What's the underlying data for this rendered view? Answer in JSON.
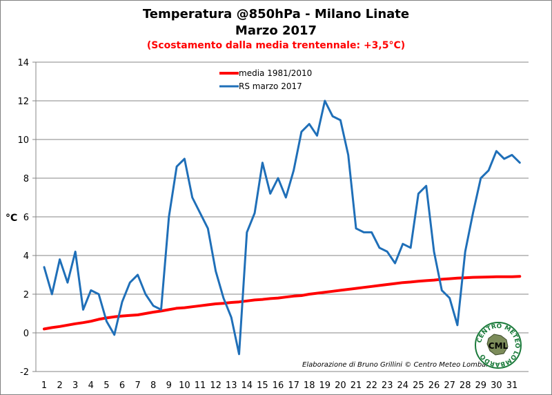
{
  "header": {
    "title_line1": "Temperatura @850hPa - Milano Linate",
    "title_line2": "Marzo 2017",
    "subtitle": "(Scostamento dalla media trentennale: +3,5°C)"
  },
  "colors": {
    "media": "#ff0000",
    "rs": "#1f6fb8",
    "subtitle": "#ff0000",
    "axis": "#868686",
    "grid": "#868686"
  },
  "credit": "Elaborazione di Bruno Grillini © Centro Meteo Lombardo",
  "logo": {
    "ring_text": "CENTRO METEO LOMBARDO",
    "center_text": "CML"
  },
  "chart_data": {
    "type": "line",
    "x": [
      1,
      1.5,
      2,
      2.5,
      3,
      3.5,
      4,
      4.5,
      5,
      5.5,
      6,
      6.5,
      7,
      7.5,
      8,
      8.5,
      9,
      9.5,
      10,
      10.5,
      11,
      11.5,
      12,
      12.5,
      13,
      13.5,
      14,
      14.5,
      15,
      15.5,
      16,
      16.5,
      17,
      17.5,
      18,
      18.5,
      19,
      19.5,
      20,
      20.5,
      21,
      21.5,
      22,
      22.5,
      23,
      23.5,
      24,
      24.5,
      25,
      25.5,
      26,
      26.5,
      27,
      27.5,
      28,
      28.5,
      29,
      29.5,
      30,
      30.5,
      31,
      31.5
    ],
    "series": [
      {
        "name": "media 1981/2010",
        "values": [
          0.2,
          0.27,
          0.33,
          0.4,
          0.47,
          0.53,
          0.6,
          0.7,
          0.77,
          0.83,
          0.87,
          0.9,
          0.93,
          1.0,
          1.07,
          1.13,
          1.2,
          1.27,
          1.3,
          1.35,
          1.4,
          1.45,
          1.5,
          1.53,
          1.57,
          1.6,
          1.65,
          1.7,
          1.73,
          1.77,
          1.8,
          1.85,
          1.9,
          1.93,
          2.0,
          2.05,
          2.1,
          2.15,
          2.2,
          2.25,
          2.3,
          2.35,
          2.4,
          2.45,
          2.5,
          2.55,
          2.6,
          2.63,
          2.67,
          2.7,
          2.73,
          2.77,
          2.8,
          2.83,
          2.85,
          2.87,
          2.88,
          2.89,
          2.9,
          2.9,
          2.9,
          2.92
        ]
      },
      {
        "name": "RS marzo 2017",
        "values": [
          3.4,
          2.0,
          3.8,
          2.6,
          4.2,
          1.2,
          2.2,
          2.0,
          0.6,
          -0.1,
          1.6,
          2.6,
          3.0,
          2.0,
          1.4,
          1.2,
          6.0,
          8.6,
          9.0,
          7.0,
          6.2,
          5.4,
          3.2,
          1.8,
          0.8,
          -1.1,
          5.2,
          6.2,
          8.8,
          7.2,
          8.0,
          7.0,
          8.4,
          10.4,
          10.8,
          10.2,
          12.0,
          11.2,
          11.0,
          9.2,
          5.4,
          5.2,
          5.2,
          4.4,
          4.2,
          3.6,
          4.6,
          4.4,
          7.2,
          7.6,
          4.2,
          2.2,
          1.8,
          0.4,
          4.2,
          6.2,
          8.0,
          8.4,
          9.4,
          9.0,
          9.2,
          8.8
        ]
      }
    ],
    "ylabel": "°C",
    "xlabel": "",
    "ylim": [
      -2,
      14
    ],
    "yticks": [
      -2,
      0,
      2,
      4,
      6,
      8,
      10,
      12,
      14
    ],
    "xticks": [
      1,
      2,
      3,
      4,
      5,
      6,
      7,
      8,
      9,
      10,
      11,
      12,
      13,
      14,
      15,
      16,
      17,
      18,
      19,
      20,
      21,
      22,
      23,
      24,
      25,
      26,
      27,
      28,
      29,
      30,
      31
    ],
    "grid": "horizontal",
    "legend": "top-center"
  }
}
